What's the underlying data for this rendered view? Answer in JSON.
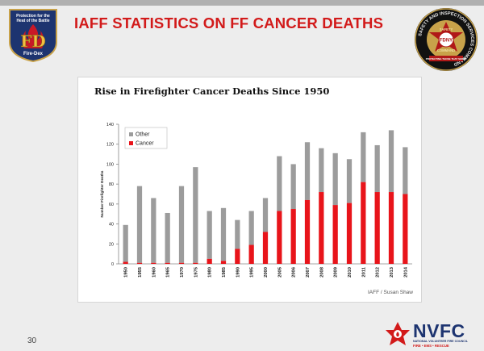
{
  "header": {
    "title": "IAFF STATISTICS ON FF CANCER DEATHS"
  },
  "logos": {
    "firedex": {
      "line1": "Protection for the",
      "line2": "Heat of the Battle",
      "mark": "FD",
      "name": "Fire-Dex"
    },
    "fdny": {
      "ring_text": "SAFETY AND INSPECTION SERVICES COMMAND",
      "center": "FDNY",
      "top": "SAFETY",
      "bottom": "COMMAND",
      "motto": "PROTECTING THOSE THAT SERVE"
    },
    "nvfc": {
      "name": "NVFC",
      "line1": "NATIONAL VOLUNTEER FIRE COUNCIL",
      "line2": "FIRE • EMS • RESCUE"
    }
  },
  "slide": {
    "page_number": "30"
  },
  "chart_data": {
    "type": "bar",
    "title": "Rise in Firefighter Cancer Deaths Since 1950",
    "ylabel": "Number Firefighter Deaths",
    "xlabel": "",
    "ylim": [
      0,
      140
    ],
    "yticks": [
      0,
      20,
      40,
      60,
      80,
      100,
      120,
      140
    ],
    "categories": [
      "1950",
      "1955",
      "1960",
      "1965",
      "1970",
      "1975",
      "1980",
      "1985",
      "1990",
      "1995",
      "2000",
      "2005",
      "2006",
      "2007",
      "2008",
      "2009",
      "2010",
      "2011",
      "2012",
      "2013",
      "2014"
    ],
    "stacked": true,
    "series": [
      {
        "name": "Cancer",
        "color": "#e8141a",
        "values": [
          2,
          1,
          1,
          1,
          1,
          1,
          5,
          3,
          15,
          19,
          32,
          53,
          55,
          64,
          72,
          59,
          61,
          82,
          72,
          72,
          70
        ]
      },
      {
        "name": "Other",
        "color": "#9c9c9c",
        "values": [
          37,
          77,
          65,
          50,
          77,
          96,
          48,
          53,
          29,
          34,
          34,
          55,
          45,
          58,
          44,
          52,
          44,
          50,
          47,
          62,
          47
        ]
      }
    ],
    "legend": {
      "placement": "top-left",
      "entries": [
        "Other",
        "Cancer"
      ]
    },
    "grid": false,
    "source": "IAFF / Susan Shaw"
  }
}
